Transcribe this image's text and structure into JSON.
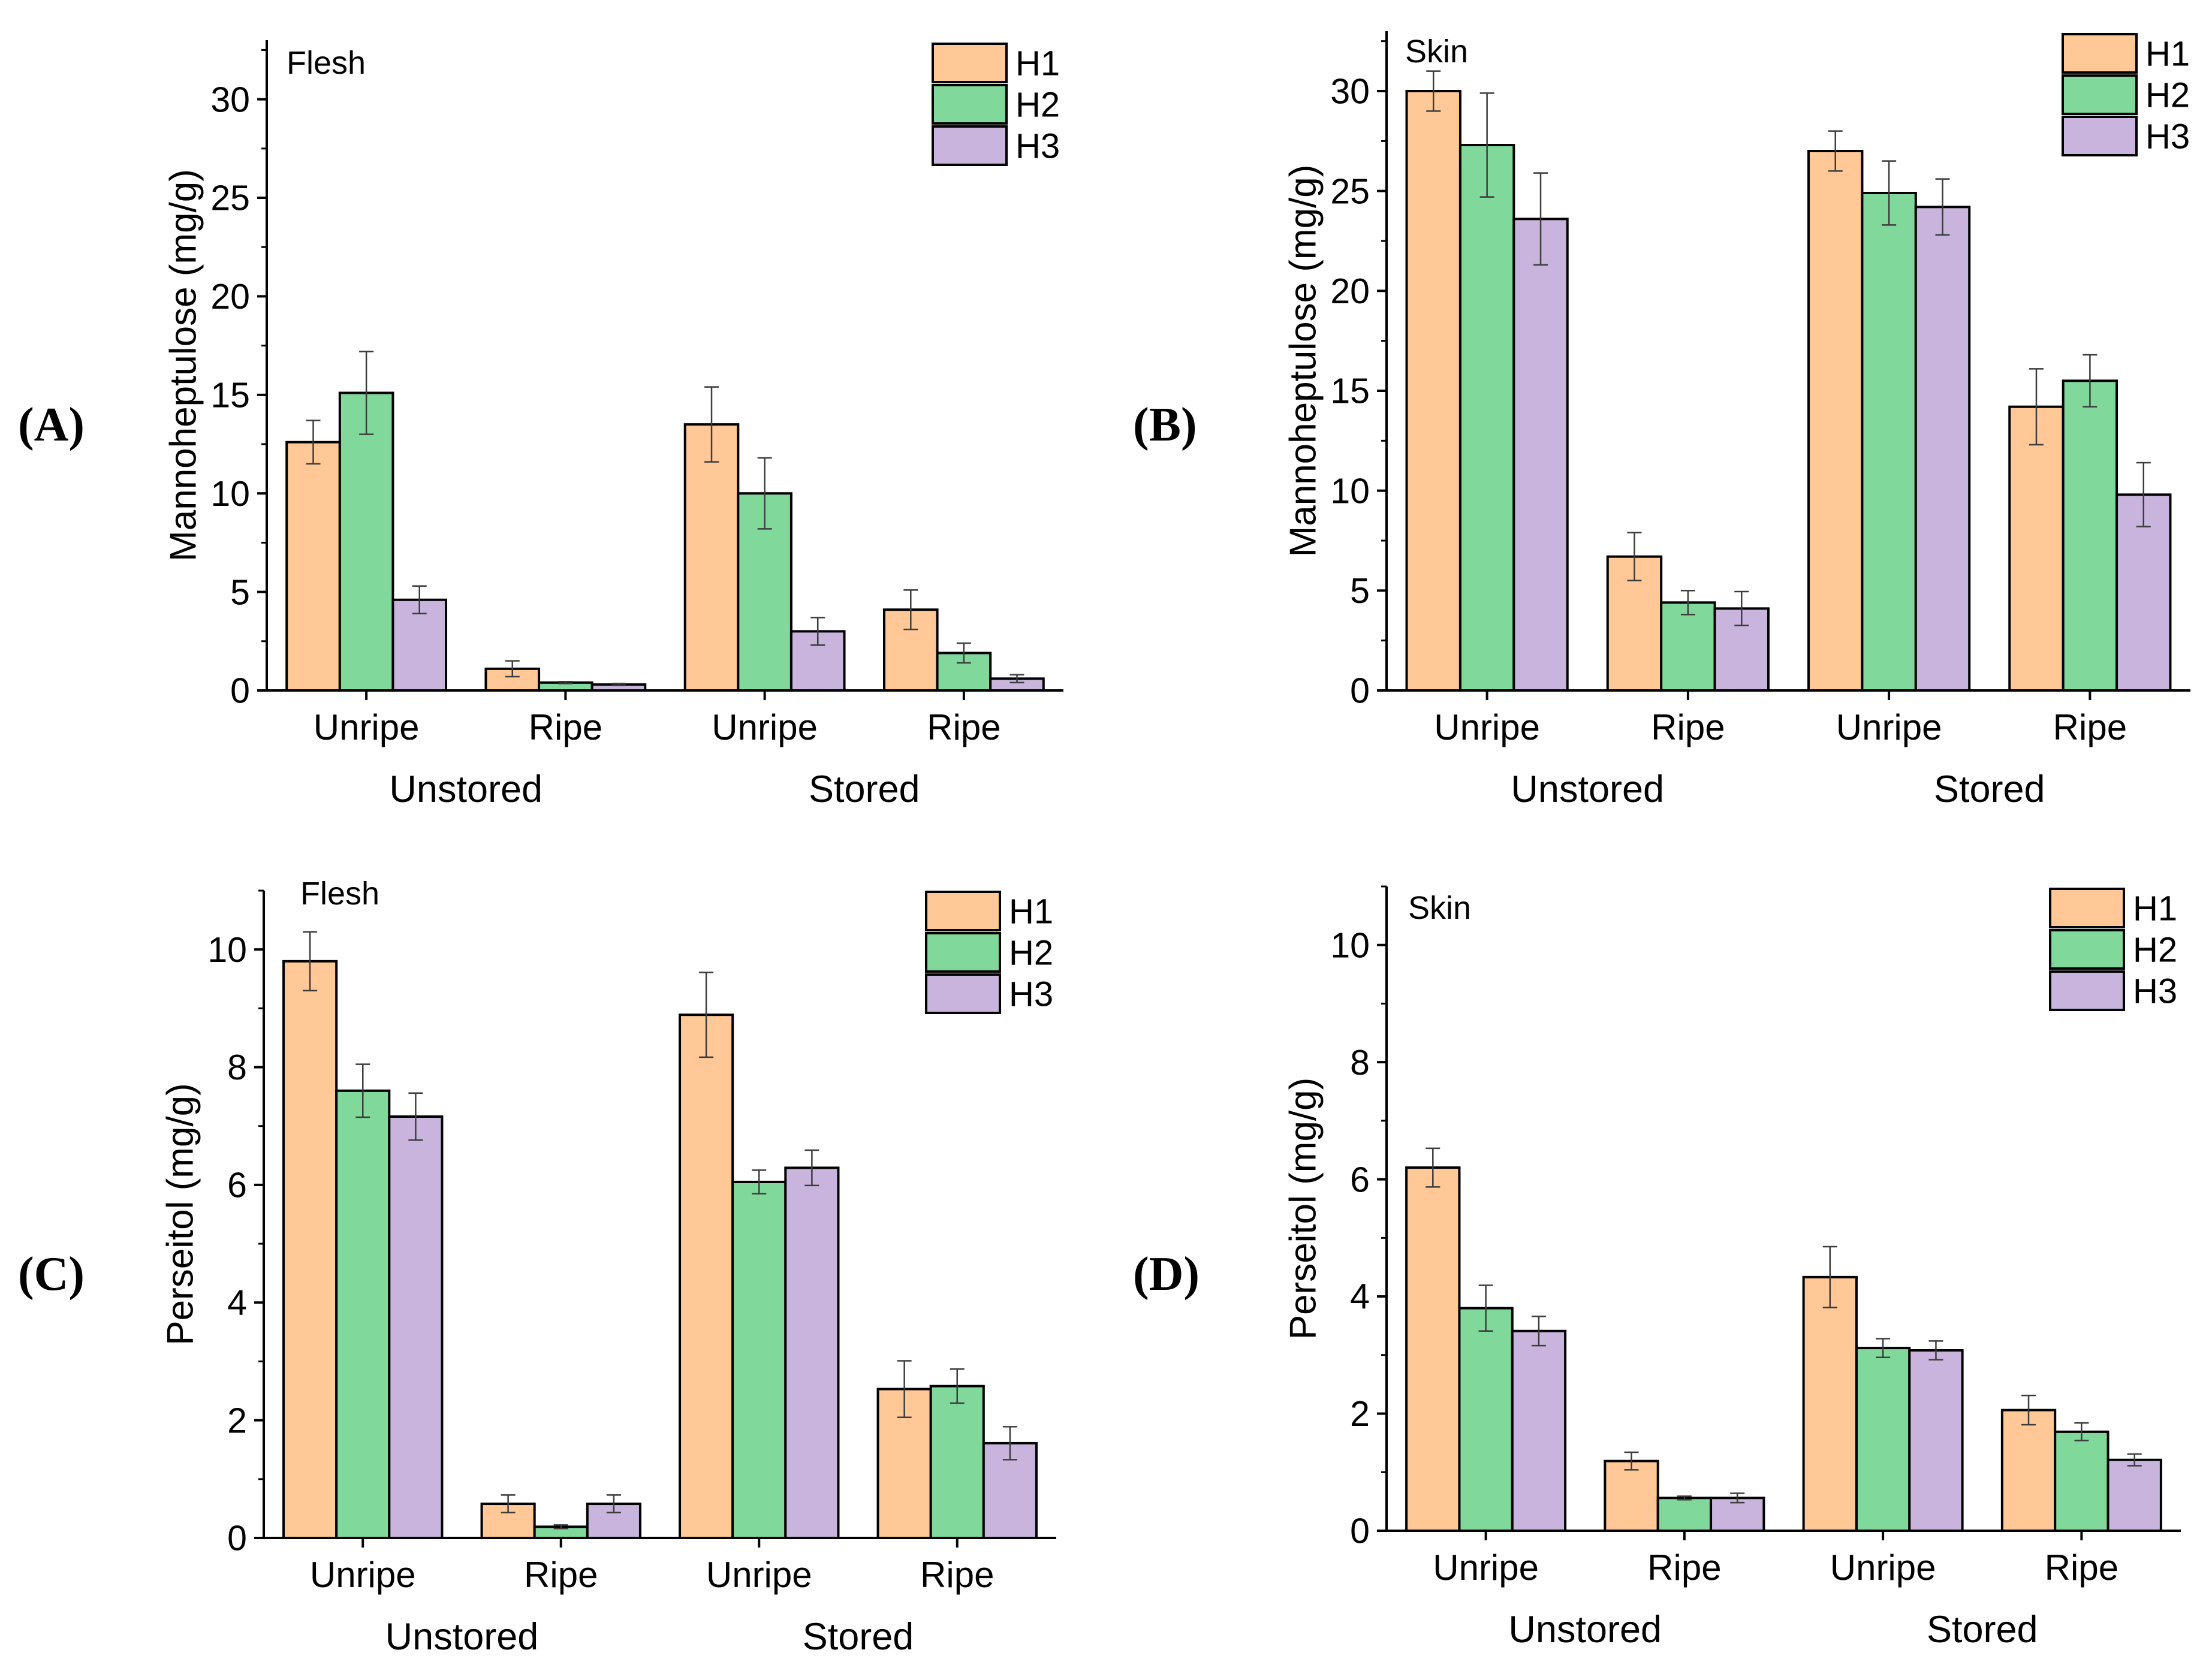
{
  "colors": {
    "H1": "#FFC896",
    "H2": "#80D99B",
    "H3": "#C8B4DC",
    "outline": "#000000",
    "error_bar": "#3C3C3C"
  },
  "chart_data": [
    {
      "type": "bar",
      "panel_label": "(A)",
      "title": "Flesh",
      "ylabel": "Mannoheptulose (mg/g)",
      "categories": [
        "Unripe",
        "Ripe",
        "Unripe",
        "Ripe"
      ],
      "groups": [
        {
          "label": "Unstored",
          "categories": [
            0,
            1
          ]
        },
        {
          "label": "Stored",
          "categories": [
            2,
            3
          ]
        }
      ],
      "series": [
        {
          "name": "H1",
          "values": [
            12.6,
            1.1,
            13.5,
            4.1
          ],
          "errors": [
            1.1,
            0.4,
            1.9,
            1.0
          ]
        },
        {
          "name": "H2",
          "values": [
            15.1,
            0.4,
            10.0,
            1.9
          ],
          "errors": [
            2.1,
            0.05,
            1.8,
            0.5
          ]
        },
        {
          "name": "H3",
          "values": [
            4.6,
            0.3,
            3.0,
            0.6
          ],
          "errors": [
            0.7,
            0.05,
            0.7,
            0.2
          ]
        }
      ],
      "ylim": [
        0,
        33
      ],
      "yticks": [
        0,
        5,
        10,
        15,
        20,
        25,
        30
      ],
      "yminor_step": 2.5,
      "legend": "top-right",
      "grid": false
    },
    {
      "type": "bar",
      "panel_label": "(B)",
      "title": "Skin",
      "ylabel": "Mannoheptulose (mg/g)",
      "categories": [
        "Unripe",
        "Ripe",
        "Unripe",
        "Ripe"
      ],
      "groups": [
        {
          "label": "Unstored",
          "categories": [
            0,
            1
          ]
        },
        {
          "label": "Stored",
          "categories": [
            2,
            3
          ]
        }
      ],
      "series": [
        {
          "name": "H1",
          "values": [
            30.0,
            6.7,
            27.0,
            14.2
          ],
          "errors": [
            1.0,
            1.2,
            1.0,
            1.9
          ]
        },
        {
          "name": "H2",
          "values": [
            27.3,
            4.4,
            24.9,
            15.5
          ],
          "errors": [
            2.6,
            0.6,
            1.6,
            1.3
          ]
        },
        {
          "name": "H3",
          "values": [
            23.6,
            4.1,
            24.2,
            9.8
          ],
          "errors": [
            2.3,
            0.85,
            1.4,
            1.6
          ]
        }
      ],
      "ylim": [
        0,
        33
      ],
      "yticks": [
        0,
        5,
        10,
        15,
        20,
        25,
        30
      ],
      "yminor_step": 2.5,
      "legend": "top-right",
      "grid": false
    },
    {
      "type": "bar",
      "panel_label": "(C)",
      "title": "Flesh",
      "ylabel": "Perseitol (mg/g)",
      "categories": [
        "Unripe",
        "Ripe",
        "Unripe",
        "Ripe"
      ],
      "groups": [
        {
          "label": "Unstored",
          "categories": [
            0,
            1
          ]
        },
        {
          "label": "Stored",
          "categories": [
            2,
            3
          ]
        }
      ],
      "series": [
        {
          "name": "H1",
          "values": [
            9.8,
            0.58,
            8.89,
            2.53
          ],
          "errors": [
            0.5,
            0.15,
            0.72,
            0.48
          ]
        },
        {
          "name": "H2",
          "values": [
            7.6,
            0.19,
            6.05,
            2.58
          ],
          "errors": [
            0.45,
            0.03,
            0.2,
            0.29
          ]
        },
        {
          "name": "H3",
          "values": [
            7.16,
            0.58,
            6.29,
            1.61
          ],
          "errors": [
            0.4,
            0.15,
            0.3,
            0.28
          ]
        }
      ],
      "ylim": [
        0,
        11
      ],
      "yticks": [
        0,
        2,
        4,
        6,
        8,
        10
      ],
      "yminor_step": 1,
      "legend": "top-right",
      "grid": false
    },
    {
      "type": "bar",
      "panel_label": "(D)",
      "title": "Skin",
      "ylabel": "Perseitol (mg/g)",
      "categories": [
        "Unripe",
        "Ripe",
        "Unripe",
        "Ripe"
      ],
      "groups": [
        {
          "label": "Unstored",
          "categories": [
            0,
            1
          ]
        },
        {
          "label": "Stored",
          "categories": [
            2,
            3
          ]
        }
      ],
      "series": [
        {
          "name": "H1",
          "values": [
            6.2,
            1.19,
            4.33,
            2.06
          ],
          "errors": [
            0.33,
            0.15,
            0.52,
            0.25
          ]
        },
        {
          "name": "H2",
          "values": [
            3.8,
            0.56,
            3.12,
            1.69
          ],
          "errors": [
            0.39,
            0.03,
            0.16,
            0.15
          ]
        },
        {
          "name": "H3",
          "values": [
            3.41,
            0.56,
            3.08,
            1.21
          ],
          "errors": [
            0.25,
            0.08,
            0.16,
            0.1
          ]
        }
      ],
      "ylim": [
        0,
        11
      ],
      "yticks": [
        0,
        2,
        4,
        6,
        8,
        10
      ],
      "yminor_step": 1,
      "legend": "top-right",
      "grid": false
    }
  ]
}
